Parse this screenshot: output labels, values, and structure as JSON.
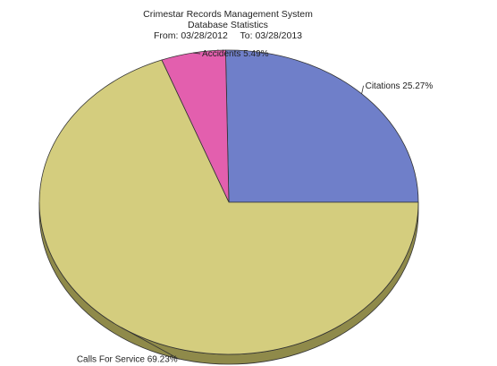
{
  "chart_data": {
    "type": "pie",
    "title": "Crimestar Records Management System",
    "subtitle": "Database Statistics",
    "date_range": {
      "from_label": "From:",
      "from": "03/28/2012",
      "to_label": "To:",
      "to": "03/28/2013"
    },
    "slices": [
      {
        "name": "Citations",
        "value": 25.27,
        "label": "Citations 25.27%",
        "color": "#6f7fc9"
      },
      {
        "name": "Accidents",
        "value": 5.49,
        "label": "Accidents 5.49%",
        "color": "#e35fae"
      },
      {
        "name": "Calls For Service",
        "value": 69.23,
        "label": "Calls For Service 69.23%",
        "color": "#d4cd7e"
      }
    ],
    "style": "3d-tilted",
    "side_color": "#8f8a4a"
  }
}
